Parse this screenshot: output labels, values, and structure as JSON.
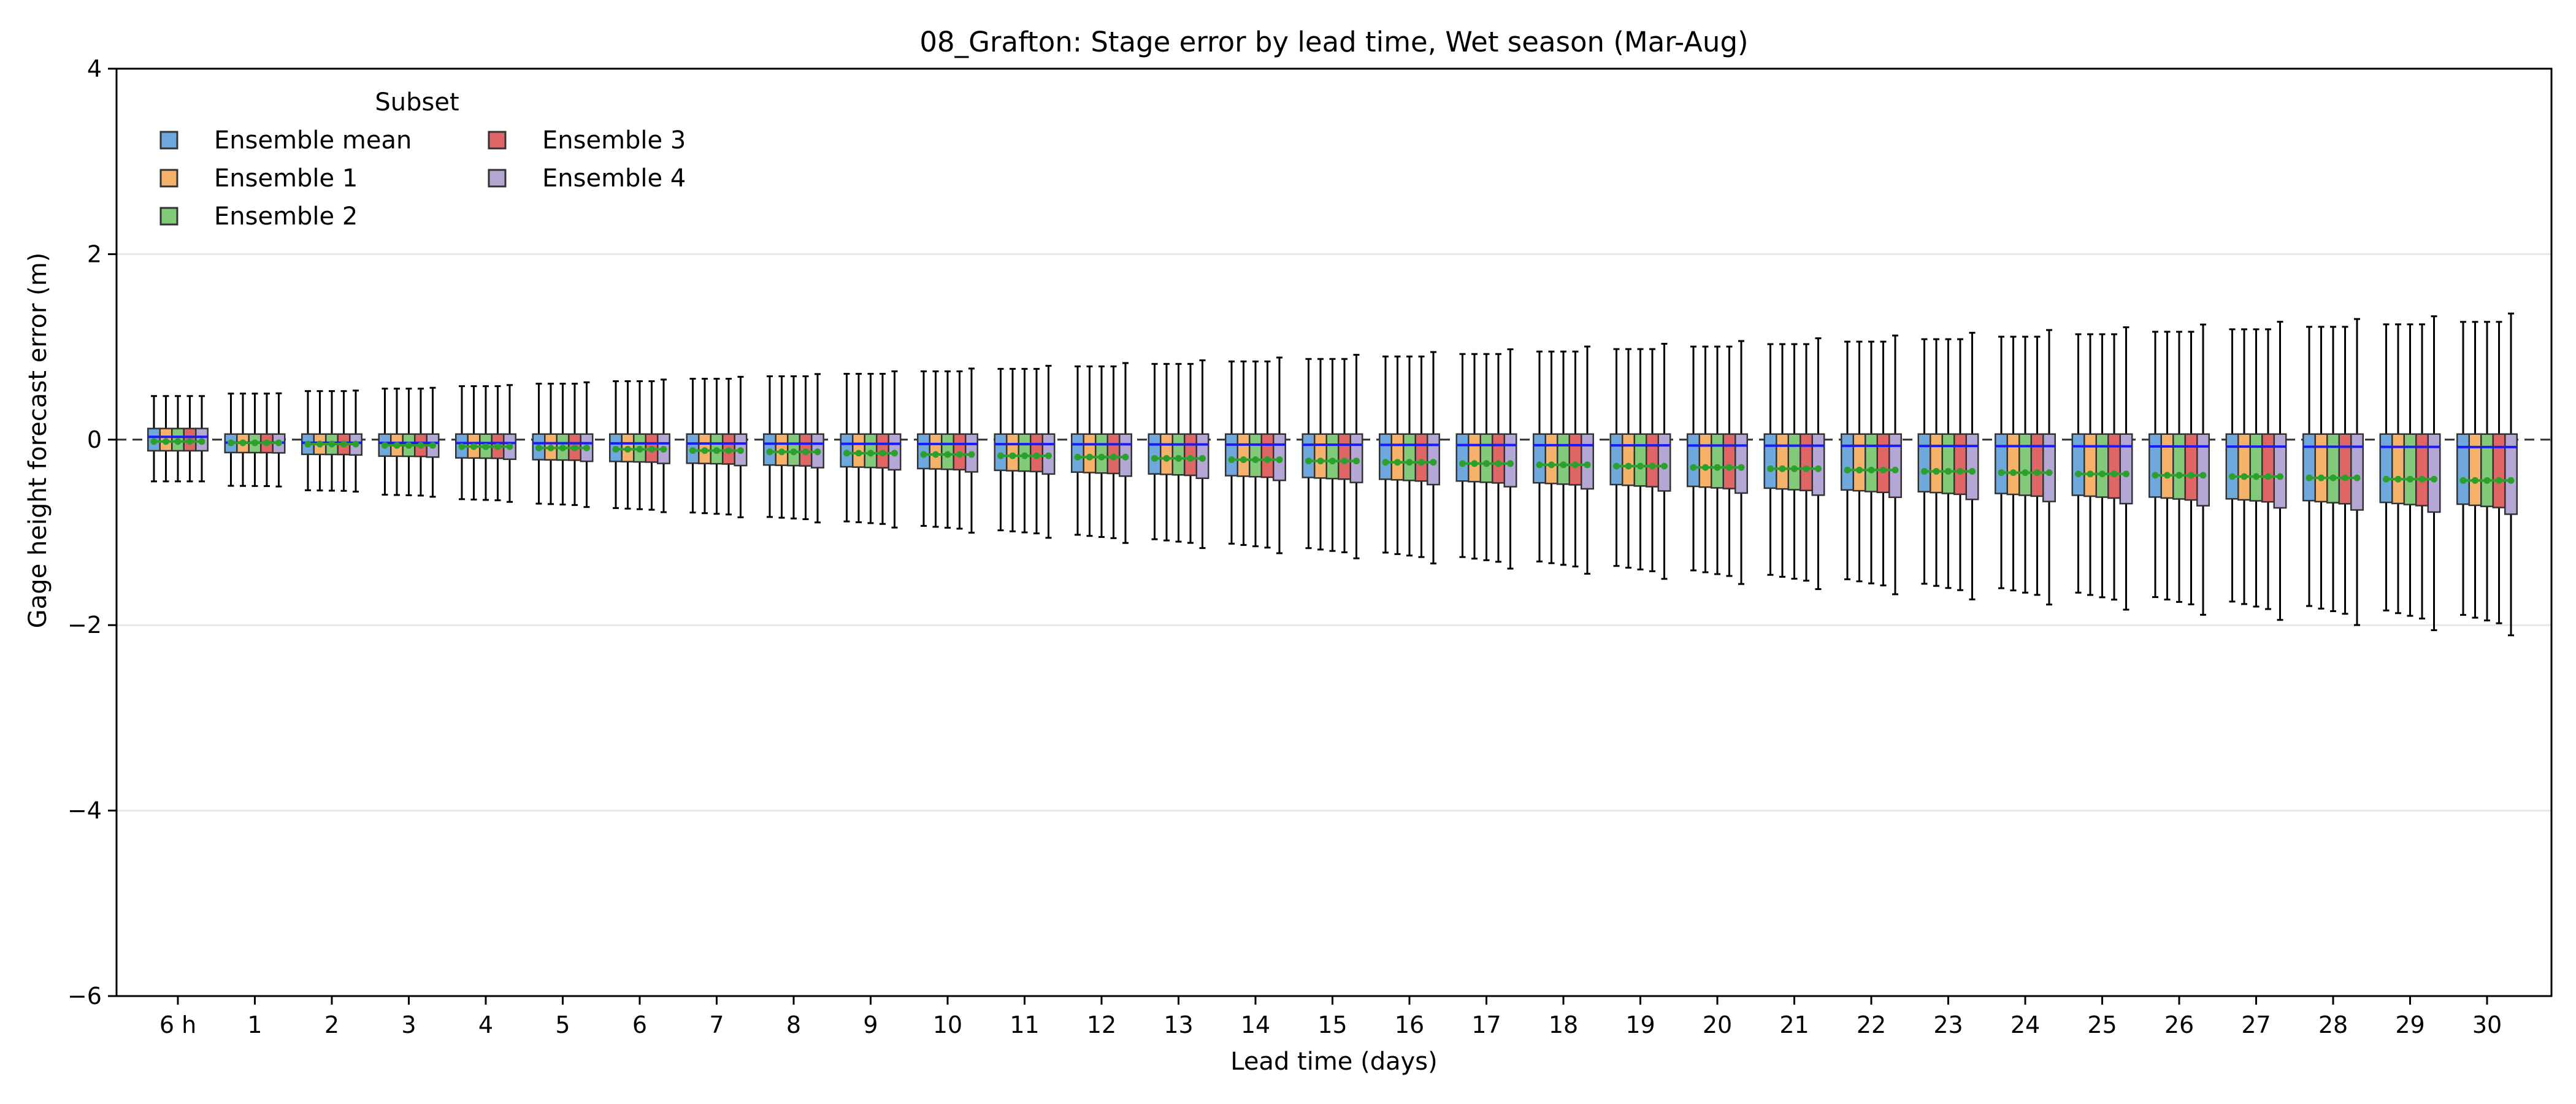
{
  "chart_data": {
    "type": "box",
    "title": "08_Grafton: Stage error by lead time, Wet season (Mar-Aug)",
    "xlabel": "Lead time (days)",
    "ylabel": "Gage height forecast error (m)",
    "ylim": [
      -6,
      4
    ],
    "yticks": [
      -6,
      -4,
      -2,
      0,
      2,
      4
    ],
    "ytick_labels": [
      "−6",
      "−4",
      "−2",
      "0",
      "2",
      "4"
    ],
    "grid": "horizontal",
    "reference_line": 0,
    "categories": [
      "6 h",
      "1",
      "2",
      "3",
      "4",
      "5",
      "6",
      "7",
      "8",
      "9",
      "10",
      "11",
      "12",
      "13",
      "14",
      "15",
      "16",
      "17",
      "18",
      "19",
      "20",
      "21",
      "22",
      "23",
      "24",
      "25",
      "26",
      "27",
      "28",
      "29",
      "30"
    ],
    "legend": {
      "title": "Subset",
      "placement": "upper-left",
      "columns": 2
    },
    "series": [
      {
        "name": "Ensemble mean",
        "color": "#6fa8dc"
      },
      {
        "name": "Ensemble 1",
        "color": "#f6b26b"
      },
      {
        "name": "Ensemble 2",
        "color": "#82c97a"
      },
      {
        "name": "Ensemble 3",
        "color": "#e06666"
      },
      {
        "name": "Ensemble 4",
        "color": "#b4a7d6"
      }
    ],
    "median_color": "#1a1aff",
    "mean_marker_color": "#2ca02c"
  }
}
